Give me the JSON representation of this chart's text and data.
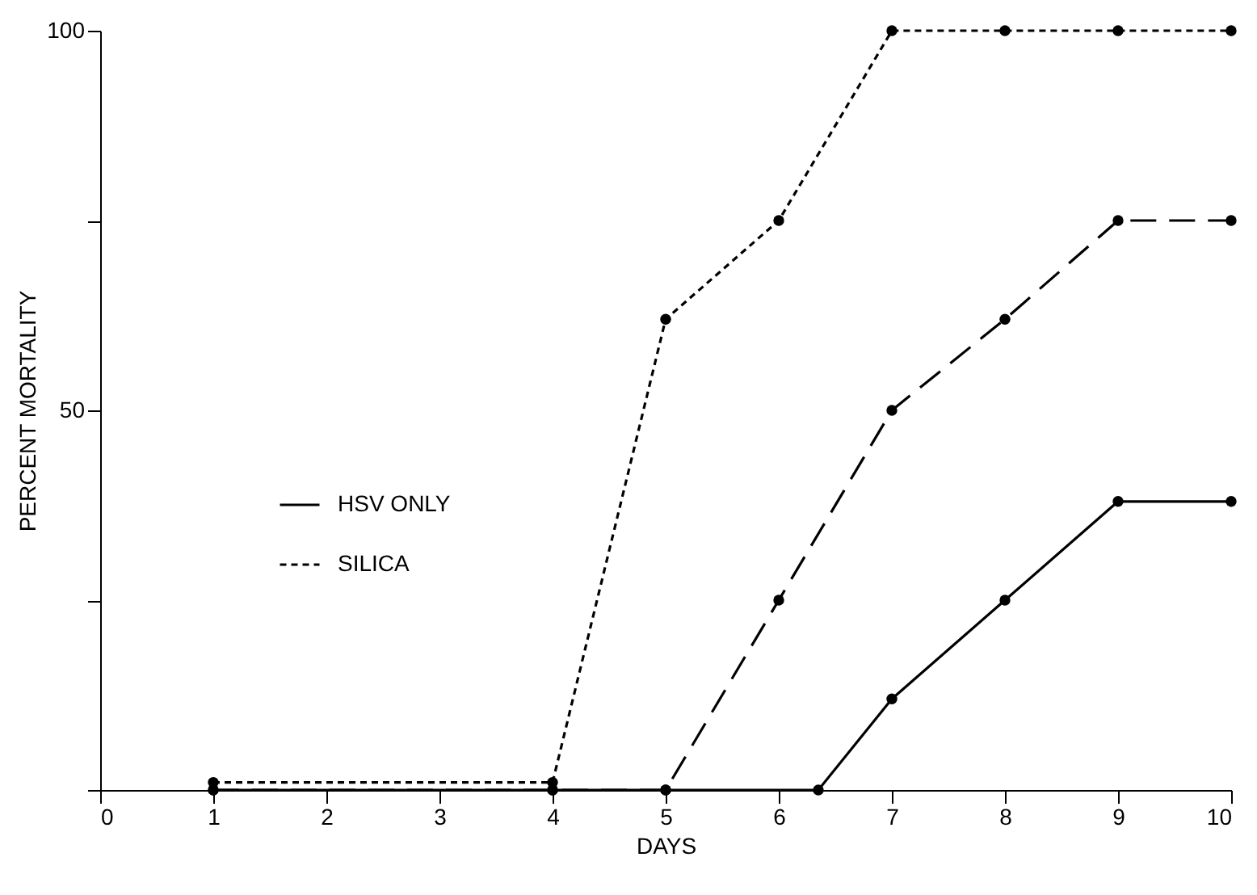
{
  "chart_data": {
    "type": "line",
    "xlabel": "DAYS",
    "ylabel": "PERCENT MORTALITY",
    "xlim": [
      0,
      10
    ],
    "xticks": [
      0,
      1,
      2,
      3,
      4,
      5,
      6,
      7,
      8,
      9,
      10
    ],
    "ylim": [
      0,
      100
    ],
    "yticks": [
      {
        "value": 0,
        "label": null
      },
      {
        "value": 25,
        "label": null
      },
      50,
      {
        "value": 75,
        "label": null
      },
      100
    ],
    "legend": "left",
    "marker": "circle",
    "grid": false,
    "series": [
      {
        "name": "HSV ONLY",
        "color": "#000000",
        "line_style": "solid",
        "x": [
          1,
          4,
          5,
          6.35,
          7,
          8,
          9,
          10
        ],
        "values": [
          0,
          0,
          0,
          0,
          12,
          25,
          38,
          38
        ]
      },
      {
        "color": "#000000",
        "line_style": "dashed",
        "x": [
          1,
          4,
          5,
          6,
          7,
          8,
          9,
          10
        ],
        "values": [
          0,
          0,
          0,
          25,
          50,
          62,
          75,
          75
        ]
      },
      {
        "name": "SILICA",
        "color": "#000000",
        "line_style": "dotted",
        "x": [
          1,
          4,
          5,
          6,
          7,
          8,
          9,
          10
        ],
        "values": [
          1,
          1,
          62,
          75,
          100,
          100,
          100,
          100
        ]
      }
    ]
  }
}
